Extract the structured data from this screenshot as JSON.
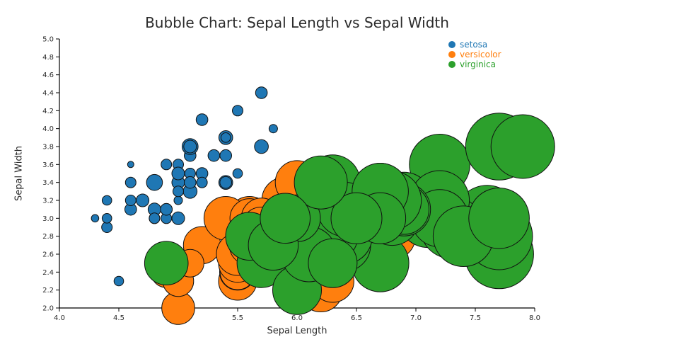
{
  "chart_data": {
    "type": "scatter",
    "subtype": "bubble",
    "title": "Bubble Chart: Sepal Length vs Sepal Width",
    "xlabel": "Sepal Length",
    "ylabel": "Sepal Width",
    "xlim": [
      4.0,
      8.0
    ],
    "ylim": [
      2.0,
      5.0
    ],
    "xticks": [
      "4.0",
      "4.5",
      "5.0",
      "5.5",
      "6.0",
      "6.5",
      "7.0",
      "7.5",
      "8.0"
    ],
    "yticks": [
      "2.0",
      "2.2",
      "2.4",
      "2.6",
      "2.8",
      "3.0",
      "3.2",
      "3.4",
      "3.6",
      "3.8",
      "4.0",
      "4.2",
      "4.4",
      "4.6",
      "4.8",
      "5.0"
    ],
    "grid": false,
    "background": "#ffffff",
    "legend_position": "top-right-inside",
    "size_metric": "petal_length",
    "series": [
      {
        "name": "setosa",
        "color": "#1f77b4",
        "x": [
          5.1,
          4.9,
          4.7,
          4.6,
          5.0,
          5.4,
          4.6,
          5.0,
          4.4,
          4.9,
          5.4,
          4.8,
          4.8,
          4.3,
          5.8,
          5.7,
          5.4,
          5.1,
          5.7,
          5.1,
          5.4,
          5.1,
          4.6,
          5.1,
          4.8,
          5.0,
          5.0,
          5.2,
          5.2,
          4.7,
          4.8,
          5.4,
          5.2,
          5.5,
          4.9,
          5.0,
          5.5,
          4.9,
          4.4,
          5.1,
          5.0,
          4.5,
          4.4,
          5.0,
          5.1,
          4.8,
          5.1,
          4.6,
          5.3,
          5.0
        ],
        "y": [
          3.5,
          3.0,
          3.2,
          3.1,
          3.6,
          3.9,
          3.4,
          3.4,
          2.9,
          3.1,
          3.7,
          3.4,
          3.0,
          3.0,
          4.0,
          4.4,
          3.9,
          3.5,
          3.8,
          3.8,
          3.4,
          3.7,
          3.6,
          3.3,
          3.4,
          3.0,
          3.4,
          3.5,
          3.4,
          3.2,
          3.1,
          3.4,
          4.1,
          4.2,
          3.1,
          3.2,
          3.5,
          3.6,
          3.0,
          3.4,
          3.5,
          2.3,
          3.2,
          3.5,
          3.8,
          3.0,
          3.8,
          3.2,
          3.7,
          3.3
        ],
        "size": [
          1.4,
          1.4,
          1.3,
          1.5,
          1.4,
          1.7,
          1.4,
          1.5,
          1.4,
          1.5,
          1.5,
          1.6,
          1.4,
          1.1,
          1.2,
          1.5,
          1.3,
          1.4,
          1.7,
          1.5,
          1.7,
          1.5,
          1.0,
          1.7,
          1.9,
          1.6,
          1.6,
          1.5,
          1.4,
          1.6,
          1.6,
          1.5,
          1.5,
          1.4,
          1.5,
          1.2,
          1.3,
          1.4,
          1.3,
          1.5,
          1.3,
          1.3,
          1.3,
          1.6,
          1.9,
          1.4,
          1.6,
          1.4,
          1.5,
          1.4
        ]
      },
      {
        "name": "versicolor",
        "color": "#ff7f0e",
        "x": [
          7.0,
          6.4,
          6.9,
          5.5,
          6.5,
          5.7,
          6.3,
          4.9,
          6.6,
          5.2,
          5.0,
          5.9,
          6.0,
          6.1,
          5.6,
          6.7,
          5.6,
          5.8,
          6.2,
          5.6,
          5.9,
          6.1,
          6.3,
          6.1,
          6.4,
          6.6,
          6.8,
          6.7,
          6.0,
          5.7,
          5.5,
          5.5,
          5.8,
          6.0,
          5.4,
          6.0,
          6.7,
          6.3,
          5.6,
          5.5,
          5.5,
          6.1,
          5.8,
          5.0,
          5.6,
          5.7,
          5.7,
          6.2,
          5.1,
          5.7
        ],
        "y": [
          3.2,
          3.2,
          3.1,
          2.3,
          2.8,
          2.8,
          3.3,
          2.4,
          2.9,
          2.7,
          2.0,
          3.0,
          2.2,
          2.9,
          2.9,
          3.1,
          3.0,
          2.7,
          2.2,
          2.5,
          3.2,
          2.8,
          2.5,
          2.8,
          2.9,
          3.0,
          2.8,
          3.0,
          2.9,
          2.6,
          2.4,
          2.4,
          2.7,
          2.7,
          3.0,
          3.4,
          3.1,
          2.3,
          3.0,
          2.5,
          2.6,
          3.0,
          2.6,
          2.3,
          2.7,
          3.0,
          2.9,
          2.9,
          2.5,
          2.8
        ],
        "size": [
          4.7,
          4.5,
          4.9,
          4.0,
          4.6,
          4.5,
          4.7,
          3.3,
          4.6,
          3.9,
          3.5,
          4.2,
          4.0,
          4.7,
          3.6,
          4.4,
          4.5,
          4.1,
          4.5,
          3.9,
          4.8,
          4.0,
          4.9,
          4.7,
          4.3,
          4.4,
          4.8,
          5.0,
          4.5,
          3.5,
          3.8,
          3.7,
          3.9,
          5.1,
          4.5,
          4.5,
          4.7,
          4.4,
          4.1,
          4.0,
          4.4,
          4.6,
          4.0,
          3.3,
          4.2,
          4.2,
          4.2,
          4.3,
          3.0,
          4.1
        ]
      },
      {
        "name": "virginica",
        "color": "#2ca02c",
        "x": [
          6.3,
          5.8,
          7.1,
          6.3,
          6.5,
          7.6,
          4.9,
          7.3,
          6.7,
          7.2,
          6.5,
          6.4,
          6.8,
          5.7,
          5.8,
          6.4,
          6.5,
          7.7,
          7.7,
          6.0,
          6.9,
          5.6,
          7.7,
          6.3,
          6.7,
          7.2,
          6.2,
          6.1,
          6.4,
          7.2,
          7.4,
          7.9,
          6.4,
          6.3,
          6.1,
          7.7,
          6.3,
          6.4,
          6.0,
          6.9,
          6.7,
          6.9,
          5.8,
          6.8,
          6.7,
          6.7,
          6.3,
          6.5,
          6.2,
          5.9
        ],
        "y": [
          3.3,
          2.7,
          3.0,
          2.9,
          3.0,
          3.0,
          2.5,
          2.9,
          2.5,
          3.6,
          3.2,
          2.7,
          3.0,
          2.5,
          2.8,
          3.2,
          3.0,
          3.8,
          2.6,
          2.2,
          3.2,
          2.8,
          2.8,
          2.7,
          3.3,
          3.2,
          2.8,
          3.0,
          2.8,
          3.0,
          2.8,
          3.8,
          2.8,
          2.8,
          2.6,
          3.0,
          3.4,
          3.1,
          3.0,
          3.1,
          3.1,
          3.1,
          2.7,
          3.2,
          3.3,
          3.0,
          2.5,
          3.0,
          3.4,
          3.0
        ],
        "size": [
          6.0,
          5.1,
          5.9,
          5.6,
          5.8,
          6.6,
          4.5,
          6.3,
          5.8,
          6.1,
          5.1,
          5.3,
          5.5,
          5.0,
          5.1,
          5.3,
          5.5,
          6.7,
          6.9,
          5.0,
          5.7,
          4.9,
          6.7,
          4.9,
          5.7,
          6.0,
          4.8,
          4.9,
          5.6,
          5.8,
          6.1,
          6.4,
          5.6,
          5.1,
          5.6,
          6.1,
          5.6,
          5.5,
          4.8,
          5.4,
          5.6,
          5.1,
          5.1,
          5.9,
          5.7,
          5.2,
          5.0,
          5.2,
          5.4,
          5.1
        ]
      }
    ]
  }
}
